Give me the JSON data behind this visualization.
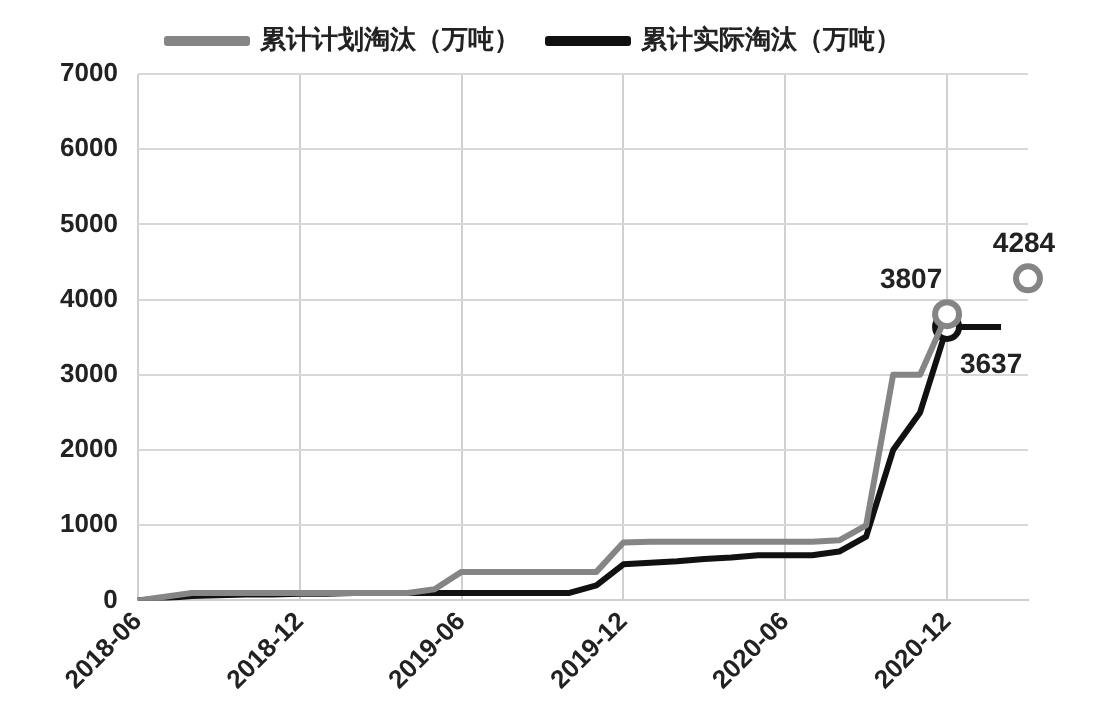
{
  "chart_data": {
    "type": "line",
    "categories": [
      "2018-06",
      null,
      null,
      null,
      null,
      null,
      "2018-12",
      null,
      null,
      null,
      null,
      null,
      "2019-06",
      null,
      null,
      null,
      null,
      null,
      "2019-12",
      null,
      null,
      null,
      null,
      null,
      "2020-06",
      null,
      null,
      null,
      null,
      null,
      "2020-12",
      null,
      null,
      null
    ],
    "series": [
      {
        "name": "累计计划淘汰（万吨）",
        "color": "#858585",
        "values": [
          0,
          50,
          100,
          100,
          100,
          100,
          100,
          100,
          100,
          100,
          100,
          150,
          380,
          380,
          380,
          380,
          380,
          380,
          770,
          780,
          780,
          780,
          780,
          780,
          780,
          780,
          800,
          1000,
          3000,
          3000,
          3807,
          null,
          null,
          4284
        ],
        "value_labels": [
          null,
          null,
          null,
          null,
          null,
          null,
          null,
          null,
          null,
          null,
          null,
          null,
          null,
          null,
          null,
          null,
          null,
          null,
          null,
          null,
          null,
          null,
          null,
          null,
          null,
          null,
          null,
          null,
          null,
          null,
          "3807",
          null,
          null,
          "4284"
        ]
      },
      {
        "name": "累计实际淘汰（万吨）",
        "color": "#111111",
        "values": [
          0,
          30,
          60,
          70,
          80,
          80,
          90,
          90,
          100,
          100,
          100,
          100,
          100,
          100,
          100,
          100,
          100,
          200,
          480,
          500,
          520,
          550,
          570,
          600,
          600,
          600,
          650,
          850,
          2000,
          2500,
          3637,
          3637,
          3637,
          null
        ],
        "value_labels": [
          null,
          null,
          null,
          null,
          null,
          null,
          null,
          null,
          null,
          null,
          null,
          null,
          null,
          null,
          null,
          null,
          null,
          null,
          null,
          null,
          null,
          null,
          null,
          null,
          null,
          null,
          null,
          null,
          null,
          null,
          "3637",
          null,
          null,
          null
        ]
      }
    ],
    "ylim": [
      0,
      7000
    ],
    "yticks": [
      0,
      1000,
      2000,
      3000,
      4000,
      5000,
      6000,
      7000
    ],
    "grid": true,
    "legend": "top",
    "line_style": "solid"
  }
}
